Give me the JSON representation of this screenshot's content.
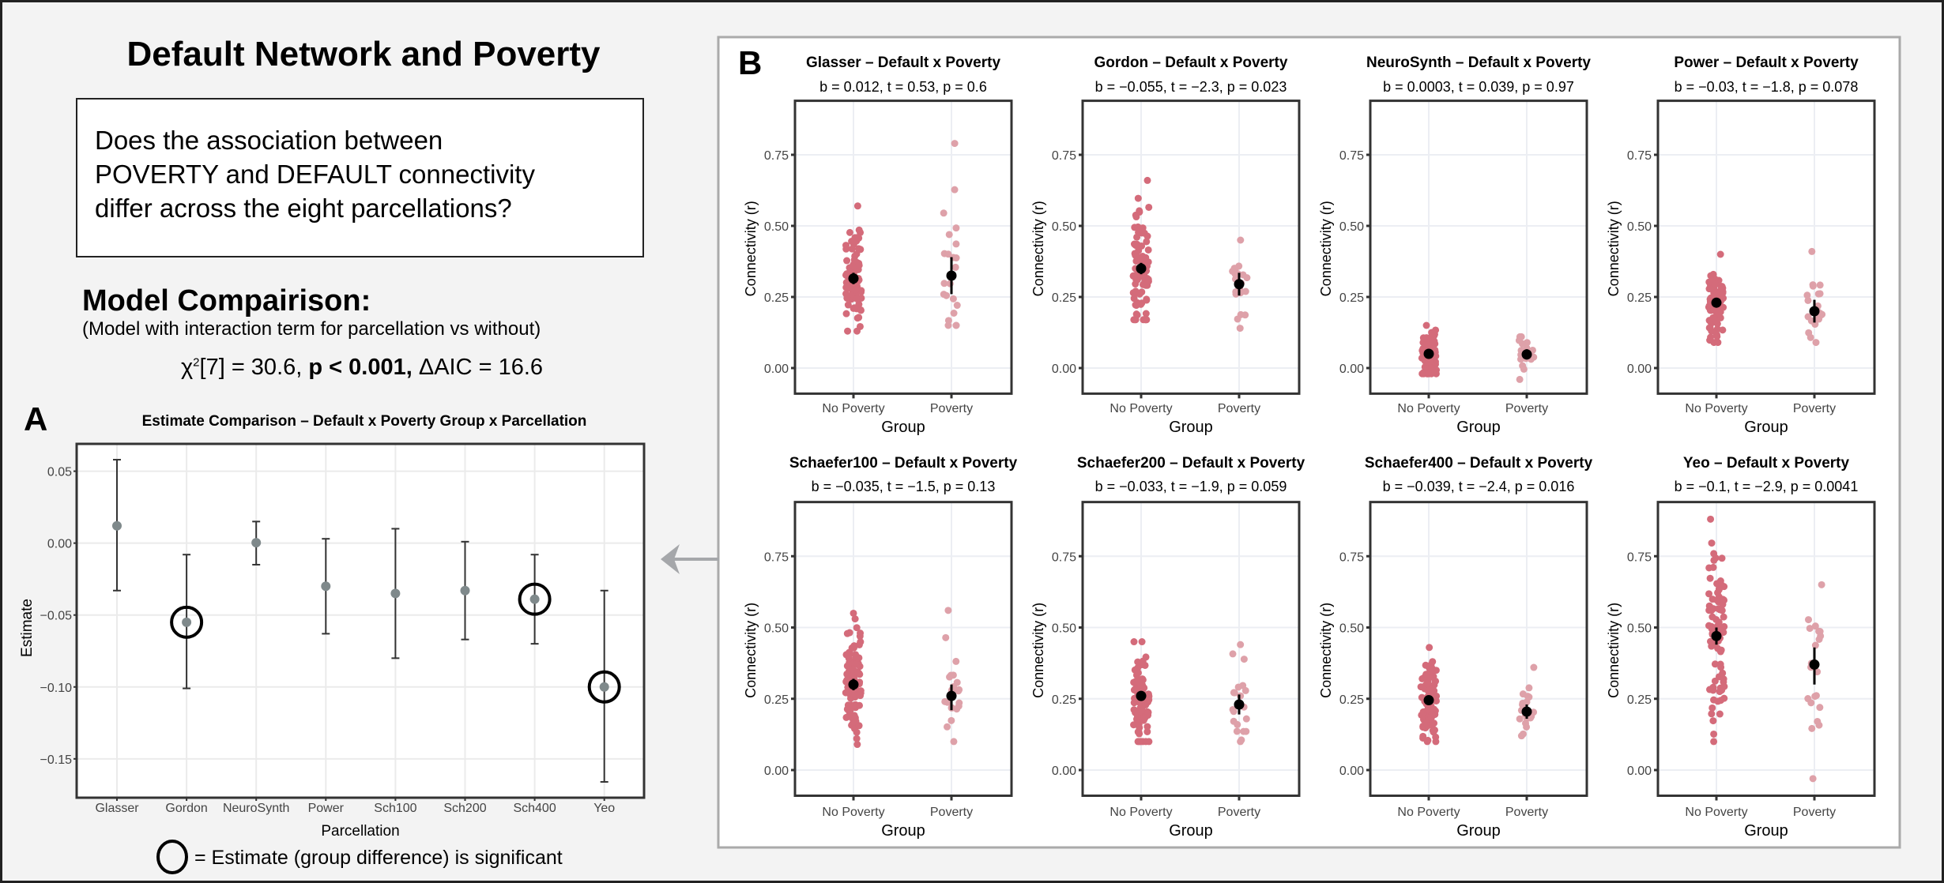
{
  "left": {
    "title": "Default Network and Poverty",
    "question_lines": [
      "Does the association between",
      "POVERTY and DEFAULT connectivity",
      "differ across the eight parcellations?"
    ],
    "model_heading": "Model Compairison:",
    "model_subtitle": "(Model with interaction term for parcellation vs without)",
    "stat": {
      "chi_symbol": "χ",
      "chi_sup": "2",
      "chi_rest": "[7] = 30.6, ",
      "p_bold": "p < 0.001,",
      "aic": " ΔAIC = 16.6"
    }
  },
  "panel_labels": {
    "a": "A",
    "b": "B"
  },
  "legend": {
    "text": "= Estimate (group difference) is significant",
    "icon": "circle-outline-icon"
  },
  "colors": {
    "estimate_point": "#7f898b",
    "no_poverty": "#d46b7a",
    "poverty": "#dea1a9",
    "mean_point": "#000000",
    "arrow": "#a5a7aa"
  },
  "chart_data": [
    {
      "type": "scatter",
      "title": "Estimate Comparison – Default x Poverty Group x Parcellation",
      "xlabel": "Parcellation",
      "ylabel": "Estimate",
      "categories": [
        "Glasser",
        "Gordon",
        "NeuroSynth",
        "Power",
        "Sch100",
        "Sch200",
        "Sch400",
        "Yeo"
      ],
      "estimates": [
        0.012,
        -0.055,
        0.0003,
        -0.03,
        -0.035,
        -0.033,
        -0.039,
        -0.1
      ],
      "ci_lower": [
        -0.033,
        -0.101,
        -0.015,
        -0.063,
        -0.08,
        -0.067,
        -0.07,
        -0.166
      ],
      "ci_upper": [
        0.058,
        -0.008,
        0.015,
        0.003,
        0.01,
        0.001,
        -0.008,
        -0.033
      ],
      "significant": [
        false,
        true,
        false,
        false,
        false,
        false,
        true,
        true
      ],
      "yticks": [
        0.05,
        0.0,
        -0.05,
        -0.1,
        -0.15
      ],
      "ytick_labels": [
        "0.05",
        "0.00",
        "−0.05",
        "−0.10",
        "−0.15"
      ],
      "ylim": [
        -0.177,
        0.069
      ],
      "grid": true
    },
    {
      "type": "scatter",
      "title": "Glasser – Default x Poverty",
      "subtitle": "b = 0.012, t = 0.53, p = 0.6",
      "xlabel": "Group",
      "ylabel": "Connectivity (r)",
      "categories": [
        "No Poverty",
        "Poverty"
      ],
      "groups": [
        {
          "mean": 0.315,
          "ci": [
            0.295,
            0.335
          ],
          "range": [
            0.13,
            0.57
          ]
        },
        {
          "mean": 0.325,
          "ci": [
            0.26,
            0.39
          ],
          "range": [
            0.15,
            0.79
          ]
        }
      ],
      "yticks": [
        0.75,
        0.5,
        0.25,
        0
      ],
      "ytick_labels": [
        "0.75",
        "0.50",
        "0.25",
        "0.00"
      ],
      "ylim": [
        -0.09,
        0.94
      ],
      "grid": true
    },
    {
      "type": "scatter",
      "title": "Gordon – Default x Poverty",
      "subtitle": "b = −0.055, t = −2.3, p = 0.023",
      "xlabel": "Group",
      "ylabel": "Connectivity (r)",
      "categories": [
        "No Poverty",
        "Poverty"
      ],
      "groups": [
        {
          "mean": 0.35,
          "ci": [
            0.33,
            0.37
          ],
          "range": [
            0.17,
            0.66
          ]
        },
        {
          "mean": 0.295,
          "ci": [
            0.255,
            0.335
          ],
          "range": [
            0.14,
            0.45
          ]
        }
      ],
      "yticks": [
        0.75,
        0.5,
        0.25,
        0
      ],
      "ytick_labels": [
        "0.75",
        "0.50",
        "0.25",
        "0.00"
      ],
      "ylim": [
        -0.09,
        0.94
      ],
      "grid": true
    },
    {
      "type": "scatter",
      "title": "NeuroSynth – Default x Poverty",
      "subtitle": "b = 0.0003, t = 0.039, p = 0.97",
      "xlabel": "Group",
      "ylabel": "Connectivity (r)",
      "categories": [
        "No Poverty",
        "Poverty"
      ],
      "groups": [
        {
          "mean": 0.05,
          "ci": [
            0.038,
            0.062
          ],
          "range": [
            -0.02,
            0.15
          ]
        },
        {
          "mean": 0.048,
          "ci": [
            0.03,
            0.066
          ],
          "range": [
            -0.04,
            0.11
          ]
        }
      ],
      "yticks": [
        0.75,
        0.5,
        0.25,
        0
      ],
      "ytick_labels": [
        "0.75",
        "0.50",
        "0.25",
        "0.00"
      ],
      "ylim": [
        -0.09,
        0.94
      ],
      "grid": true
    },
    {
      "type": "scatter",
      "title": "Power – Default x Poverty",
      "subtitle": "b = −0.03, t = −1.8, p = 0.078",
      "xlabel": "Group",
      "ylabel": "Connectivity (r)",
      "categories": [
        "No Poverty",
        "Poverty"
      ],
      "groups": [
        {
          "mean": 0.23,
          "ci": [
            0.215,
            0.245
          ],
          "range": [
            0.09,
            0.4
          ]
        },
        {
          "mean": 0.2,
          "ci": [
            0.16,
            0.24
          ],
          "range": [
            0.09,
            0.41
          ]
        }
      ],
      "yticks": [
        0.75,
        0.5,
        0.25,
        0
      ],
      "ytick_labels": [
        "0.75",
        "0.50",
        "0.25",
        "0.00"
      ],
      "ylim": [
        -0.09,
        0.94
      ],
      "grid": true
    },
    {
      "type": "scatter",
      "title": "Schaefer100 – Default x Poverty",
      "subtitle": "b = −0.035, t = −1.5, p = 0.13",
      "xlabel": "Group",
      "ylabel": "Connectivity (r)",
      "categories": [
        "No Poverty",
        "Poverty"
      ],
      "groups": [
        {
          "mean": 0.3,
          "ci": [
            0.28,
            0.32
          ],
          "range": [
            0.09,
            0.55
          ]
        },
        {
          "mean": 0.26,
          "ci": [
            0.21,
            0.3
          ],
          "range": [
            0.1,
            0.56
          ]
        }
      ],
      "yticks": [
        0.75,
        0.5,
        0.25,
        0
      ],
      "ytick_labels": [
        "0.75",
        "0.50",
        "0.25",
        "0.00"
      ],
      "ylim": [
        -0.09,
        0.94
      ],
      "grid": true
    },
    {
      "type": "scatter",
      "title": "Schaefer200 – Default x Poverty",
      "subtitle": "b = −0.033, t = −1.9, p = 0.059",
      "xlabel": "Group",
      "ylabel": "Connectivity (r)",
      "categories": [
        "No Poverty",
        "Poverty"
      ],
      "groups": [
        {
          "mean": 0.26,
          "ci": [
            0.245,
            0.275
          ],
          "range": [
            0.1,
            0.45
          ]
        },
        {
          "mean": 0.23,
          "ci": [
            0.195,
            0.265
          ],
          "range": [
            0.1,
            0.44
          ]
        }
      ],
      "yticks": [
        0.75,
        0.5,
        0.25,
        0
      ],
      "ytick_labels": [
        "0.75",
        "0.50",
        "0.25",
        "0.00"
      ],
      "ylim": [
        -0.09,
        0.94
      ],
      "grid": true
    },
    {
      "type": "scatter",
      "title": "Schaefer400 – Default x Poverty",
      "subtitle": "b = −0.039, t = −2.4, p = 0.016",
      "xlabel": "Group",
      "ylabel": "Connectivity (r)",
      "categories": [
        "No Poverty",
        "Poverty"
      ],
      "groups": [
        {
          "mean": 0.245,
          "ci": [
            0.232,
            0.258
          ],
          "range": [
            0.1,
            0.43
          ]
        },
        {
          "mean": 0.205,
          "ci": [
            0.18,
            0.23
          ],
          "range": [
            0.12,
            0.36
          ]
        }
      ],
      "yticks": [
        0.75,
        0.5,
        0.25,
        0
      ],
      "ytick_labels": [
        "0.75",
        "0.50",
        "0.25",
        "0.00"
      ],
      "ylim": [
        -0.09,
        0.94
      ],
      "grid": true
    },
    {
      "type": "scatter",
      "title": "Yeo – Default x Poverty",
      "subtitle": "b = −0.1, t = −2.9, p = 0.0041",
      "xlabel": "Group",
      "ylabel": "Connectivity (r)",
      "categories": [
        "No Poverty",
        "Poverty"
      ],
      "groups": [
        {
          "mean": 0.47,
          "ci": [
            0.44,
            0.5
          ],
          "range": [
            0.1,
            0.88
          ]
        },
        {
          "mean": 0.37,
          "ci": [
            0.3,
            0.43
          ],
          "range": [
            -0.03,
            0.65
          ]
        }
      ],
      "yticks": [
        0.75,
        0.5,
        0.25,
        0
      ],
      "ytick_labels": [
        "0.75",
        "0.50",
        "0.25",
        "0.00"
      ],
      "ylim": [
        -0.09,
        0.94
      ],
      "grid": true
    }
  ]
}
